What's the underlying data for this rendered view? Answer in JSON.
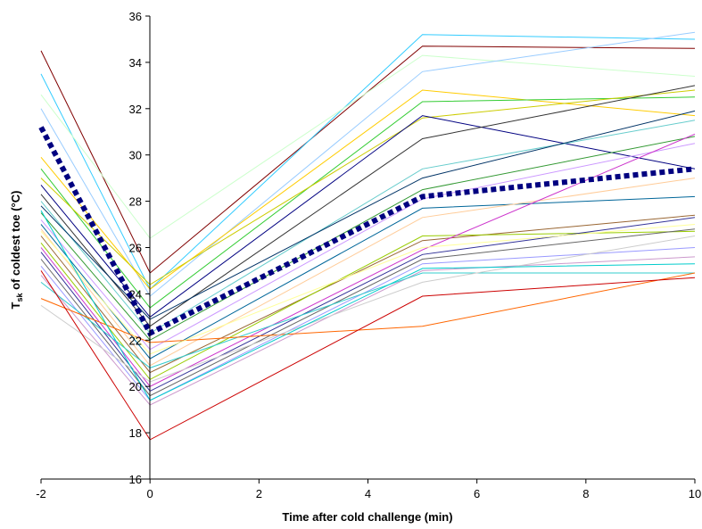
{
  "chart_data": {
    "type": "line",
    "title": "",
    "xlabel": "Time after cold challenge (min)",
    "ylabel": {
      "base": "T",
      "sub": "sk",
      "rest": " of coldest toe (°C)"
    },
    "xlim": [
      -2,
      10
    ],
    "ylim": [
      16,
      36
    ],
    "x_ticks": [
      -2,
      0,
      2,
      4,
      6,
      8,
      10
    ],
    "y_ticks": [
      16,
      18,
      20,
      22,
      24,
      26,
      28,
      30,
      32,
      34,
      36
    ],
    "grid": false,
    "legend": "none",
    "x": [
      -2,
      0,
      5,
      10
    ],
    "series": [
      {
        "values": [
          34.5,
          24.9,
          34.7,
          34.6
        ],
        "color": "#800000"
      },
      {
        "values": [
          33.5,
          24.2,
          35.2,
          35.0
        ],
        "color": "#33ccff"
      },
      {
        "values": [
          32.6,
          26.4,
          34.3,
          33.4
        ],
        "color": "#ccffcc"
      },
      {
        "values": [
          32.0,
          23.9,
          33.6,
          35.3
        ],
        "color": "#99ccff"
      },
      {
        "values": [
          29.9,
          24.2,
          32.8,
          31.7
        ],
        "color": "#ffcc00"
      },
      {
        "values": [
          29.4,
          23.4,
          32.3,
          32.5
        ],
        "color": "#33cc33"
      },
      {
        "values": [
          29.0,
          24.4,
          31.6,
          32.8
        ],
        "color": "#cccc00"
      },
      {
        "values": [
          28.7,
          23.0,
          31.7,
          29.4
        ],
        "color": "#000080"
      },
      {
        "values": [
          28.3,
          22.6,
          30.7,
          33.0
        ],
        "color": "#333333"
      },
      {
        "values": [
          28.0,
          22.3,
          29.4,
          31.5
        ],
        "color": "#66cccc"
      },
      {
        "values": [
          27.8,
          22.9,
          29.0,
          31.9
        ],
        "color": "#003366"
      },
      {
        "values": [
          27.5,
          22.0,
          28.5,
          30.8
        ],
        "color": "#339933"
      },
      {
        "values": [
          27.2,
          21.6,
          28.1,
          30.5
        ],
        "color": "#cc99ff"
      },
      {
        "values": [
          27.0,
          21.2,
          27.7,
          28.2
        ],
        "color": "#006699"
      },
      {
        "values": [
          26.8,
          20.9,
          27.3,
          29.0
        ],
        "color": "#ffcc99"
      },
      {
        "values": [
          26.5,
          20.6,
          26.3,
          27.4
        ],
        "color": "#996633"
      },
      {
        "values": [
          26.2,
          20.3,
          26.5,
          26.7
        ],
        "color": "#99cc00"
      },
      {
        "values": [
          26.0,
          20.0,
          25.9,
          30.9
        ],
        "color": "#cc33cc"
      },
      {
        "values": [
          25.8,
          19.8,
          25.7,
          27.3
        ],
        "color": "#333399"
      },
      {
        "values": [
          25.5,
          19.6,
          25.5,
          26.8
        ],
        "color": "#666666"
      },
      {
        "values": [
          25.2,
          19.4,
          25.3,
          26.0
        ],
        "color": "#9999ff"
      },
      {
        "values": [
          24.8,
          19.2,
          25.0,
          25.6
        ],
        "color": "#cc99cc"
      },
      {
        "values": [
          24.5,
          20.8,
          24.9,
          24.9
        ],
        "color": "#33cccc"
      },
      {
        "values": [
          23.8,
          21.9,
          22.6,
          24.9
        ],
        "color": "#ff6600"
      },
      {
        "values": [
          23.5,
          20.2,
          24.5,
          26.5
        ],
        "color": "#cccccc"
      },
      {
        "values": [
          25.0,
          17.7,
          23.9,
          24.7
        ],
        "color": "#cc0000"
      },
      {
        "values": [
          26.7,
          21.4,
          26.0,
          27.0
        ],
        "color": "#ffff99"
      },
      {
        "values": [
          27.6,
          19.4,
          25.1,
          25.3
        ],
        "color": "#00cccc"
      }
    ],
    "mean_series": {
      "values": [
        31.2,
        22.3,
        28.2,
        29.4
      ],
      "color": "#000080"
    }
  }
}
